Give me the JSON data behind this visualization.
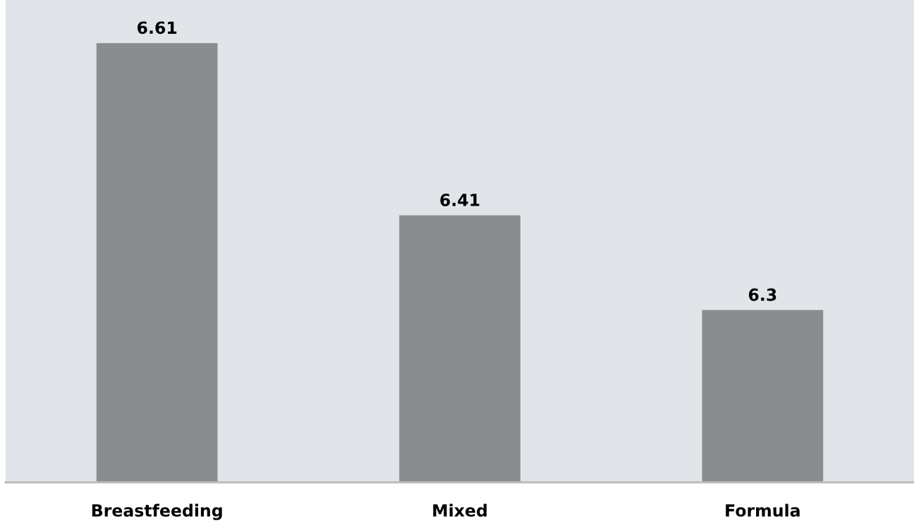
{
  "chart_data": {
    "type": "bar",
    "categories": [
      "Breastfeeding",
      "Mixed",
      "Formula"
    ],
    "values": [
      6.61,
      6.41,
      6.3
    ],
    "color": "#8a8d90",
    "ylim": [
      6.1,
      6.66
    ],
    "data_labels": true,
    "tick_labels": "x",
    "grid": false,
    "legend": false
  }
}
